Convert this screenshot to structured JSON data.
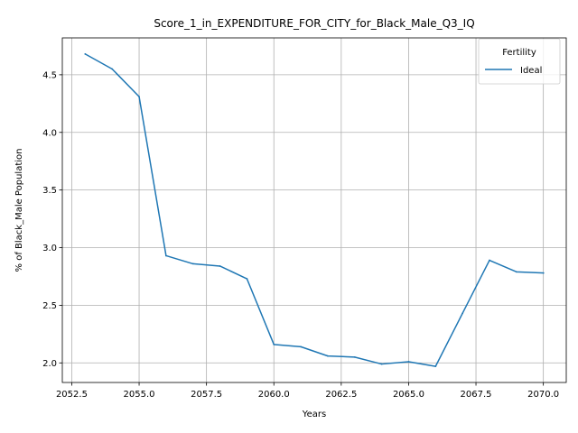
{
  "chart_data": {
    "type": "line",
    "title": "Score_1_in_EXPENDITURE_FOR_CITY_for_Black_Male_Q3_IQ",
    "xlabel": "Years",
    "ylabel": "% of Black_Male Population",
    "xlim": [
      2052.15,
      2070.85
    ],
    "ylim": [
      1.83,
      4.82
    ],
    "grid": true,
    "x_ticks": [
      2052.5,
      2055.0,
      2057.5,
      2060.0,
      2062.5,
      2065.0,
      2067.5,
      2070.0
    ],
    "x_tick_labels": [
      "2052.5",
      "2055.0",
      "2057.5",
      "2060.0",
      "2062.5",
      "2065.0",
      "2067.5",
      "2070.0"
    ],
    "y_ticks": [
      2.0,
      2.5,
      3.0,
      3.5,
      4.0,
      4.5
    ],
    "y_tick_labels": [
      "2.0",
      "2.5",
      "3.0",
      "3.5",
      "4.0",
      "4.5"
    ],
    "legend": {
      "title": "Fertility",
      "placement": "upper right"
    },
    "x": [
      2053,
      2054,
      2055,
      2056,
      2057,
      2058,
      2059,
      2060,
      2061,
      2062,
      2063,
      2064,
      2065,
      2066,
      2067,
      2068,
      2069,
      2070
    ],
    "series": [
      {
        "name": "Ideal",
        "color": "#1f77b4",
        "values": [
          4.68,
          4.55,
          4.31,
          2.93,
          2.86,
          2.84,
          2.73,
          2.16,
          2.14,
          2.06,
          2.05,
          1.99,
          2.01,
          1.97,
          2.43,
          2.89,
          2.79,
          2.78
        ]
      }
    ]
  }
}
